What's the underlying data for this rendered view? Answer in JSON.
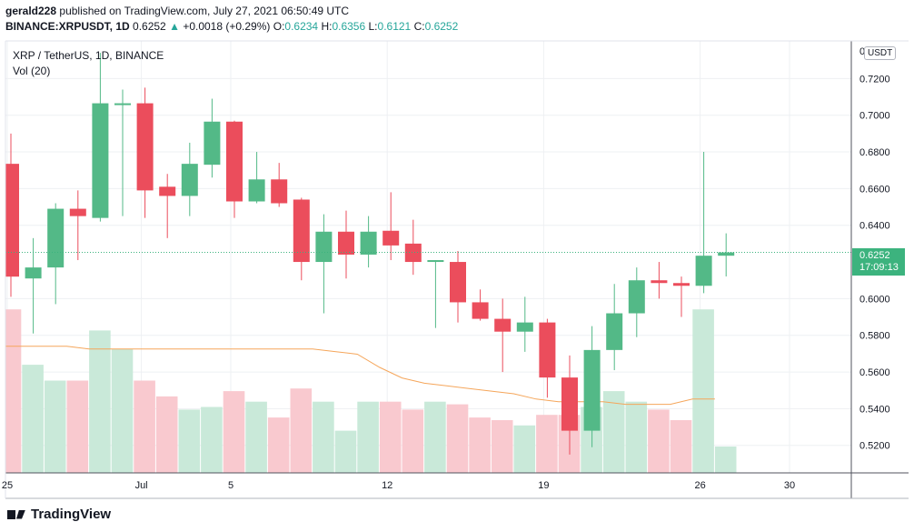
{
  "header": {
    "user": "gerald228",
    "published_text": "published on TradingView.com, July 27, 2021 06:50:49 UTC",
    "symbol_line": "BINANCE:XRPUSDT, 1D",
    "last": "0.6252",
    "change": "+0.0018 (+0.29%)",
    "open_label": "O:",
    "open": "0.6234",
    "high_label": "H:",
    "high": "0.6356",
    "low_label": "L:",
    "low": "0.6121",
    "close_label": "C:",
    "close": "0.6252"
  },
  "legend": {
    "symbol": "XRP / TetherUS, 1D, BINANCE",
    "volume": "Vol (20)"
  },
  "price_tag": {
    "price": "0.6252",
    "countdown": "17:09:13"
  },
  "currency_button": "USDT",
  "footer": {
    "brand": "TradingView"
  },
  "colors": {
    "up": "#26a69a",
    "up_candle": "#53b987",
    "down": "#eb4d5c",
    "vol_up": "#c9e9d9",
    "vol_down": "#f9c9cf",
    "ma": "#f5a65b",
    "price_line": "#3cb37e"
  },
  "chart_data": {
    "type": "candlestick",
    "y_axis": {
      "min": 0.505,
      "max": 0.7405,
      "ticks": [
        "0.7200",
        "0.7000",
        "0.6800",
        "0.6600",
        "0.6400",
        "0.6000",
        "0.5800",
        "0.5600",
        "0.5400",
        "0.5200"
      ],
      "top_partial_label": "0"
    },
    "x_axis": {
      "labels": [
        {
          "text": "25",
          "index": 0
        },
        {
          "text": "Jul",
          "index": 6
        },
        {
          "text": "5",
          "index": 10
        },
        {
          "text": "12",
          "index": 17
        },
        {
          "text": "19",
          "index": 24
        },
        {
          "text": "26",
          "index": 31
        },
        {
          "text": "30",
          "index": 35
        }
      ]
    },
    "candles": [
      {
        "o": 0.6735,
        "h": 0.69,
        "l": 0.601,
        "c": 0.612
      },
      {
        "o": 0.611,
        "h": 0.633,
        "l": 0.581,
        "c": 0.617
      },
      {
        "o": 0.617,
        "h": 0.652,
        "l": 0.597,
        "c": 0.649
      },
      {
        "o": 0.649,
        "h": 0.659,
        "l": 0.621,
        "c": 0.645
      },
      {
        "o": 0.644,
        "h": 0.734,
        "l": 0.642,
        "c": 0.7065
      },
      {
        "o": 0.7065,
        "h": 0.714,
        "l": 0.645,
        "c": 0.7065
      },
      {
        "o": 0.7065,
        "h": 0.715,
        "l": 0.644,
        "c": 0.659
      },
      {
        "o": 0.661,
        "h": 0.668,
        "l": 0.633,
        "c": 0.656
      },
      {
        "o": 0.656,
        "h": 0.685,
        "l": 0.645,
        "c": 0.6735
      },
      {
        "o": 0.673,
        "h": 0.709,
        "l": 0.666,
        "c": 0.6965
      },
      {
        "o": 0.6965,
        "h": 0.697,
        "l": 0.644,
        "c": 0.653
      },
      {
        "o": 0.653,
        "h": 0.68,
        "l": 0.652,
        "c": 0.665
      },
      {
        "o": 0.665,
        "h": 0.674,
        "l": 0.65,
        "c": 0.652
      },
      {
        "o": 0.654,
        "h": 0.655,
        "l": 0.61,
        "c": 0.62
      },
      {
        "o": 0.62,
        "h": 0.646,
        "l": 0.592,
        "c": 0.6365
      },
      {
        "o": 0.6365,
        "h": 0.648,
        "l": 0.611,
        "c": 0.624
      },
      {
        "o": 0.624,
        "h": 0.645,
        "l": 0.617,
        "c": 0.6365
      },
      {
        "o": 0.637,
        "h": 0.658,
        "l": 0.621,
        "c": 0.629
      },
      {
        "o": 0.63,
        "h": 0.643,
        "l": 0.613,
        "c": 0.62
      },
      {
        "o": 0.62,
        "h": 0.621,
        "l": 0.584,
        "c": 0.621
      },
      {
        "o": 0.62,
        "h": 0.626,
        "l": 0.587,
        "c": 0.598
      },
      {
        "o": 0.598,
        "h": 0.605,
        "l": 0.588,
        "c": 0.589
      },
      {
        "o": 0.589,
        "h": 0.6,
        "l": 0.56,
        "c": 0.582
      },
      {
        "o": 0.582,
        "h": 0.601,
        "l": 0.571,
        "c": 0.587
      },
      {
        "o": 0.587,
        "h": 0.589,
        "l": 0.546,
        "c": 0.557
      },
      {
        "o": 0.557,
        "h": 0.569,
        "l": 0.515,
        "c": 0.528
      },
      {
        "o": 0.528,
        "h": 0.585,
        "l": 0.519,
        "c": 0.572
      },
      {
        "o": 0.572,
        "h": 0.608,
        "l": 0.561,
        "c": 0.592
      },
      {
        "o": 0.592,
        "h": 0.617,
        "l": 0.579,
        "c": 0.61
      },
      {
        "o": 0.61,
        "h": 0.62,
        "l": 0.6,
        "c": 0.6085
      },
      {
        "o": 0.6085,
        "h": 0.612,
        "l": 0.59,
        "c": 0.607
      },
      {
        "o": 0.607,
        "h": 0.68,
        "l": 0.603,
        "c": 0.6234
      },
      {
        "o": 0.6234,
        "h": 0.6356,
        "l": 0.6121,
        "c": 0.6252
      }
    ],
    "volume": {
      "values": [
        0.62,
        0.41,
        0.35,
        0.35,
        0.54,
        0.47,
        0.35,
        0.29,
        0.24,
        0.25,
        0.31,
        0.27,
        0.21,
        0.32,
        0.27,
        0.16,
        0.27,
        0.27,
        0.24,
        0.27,
        0.26,
        0.21,
        0.2,
        0.18,
        0.22,
        0.22,
        0.25,
        0.31,
        0.27,
        0.24,
        0.2,
        0.62,
        0.1
      ],
      "directions": [
        "down",
        "up",
        "up",
        "down",
        "up",
        "up",
        "down",
        "down",
        "up",
        "up",
        "down",
        "up",
        "down",
        "down",
        "up",
        "up",
        "up",
        "down",
        "down",
        "up",
        "down",
        "down",
        "down",
        "up",
        "down",
        "down",
        "up",
        "up",
        "up",
        "down",
        "down",
        "up",
        "up"
      ],
      "ma": [
        0.48,
        0.48,
        0.48,
        0.48,
        0.47,
        0.47,
        0.47,
        0.47,
        0.47,
        0.47,
        0.47,
        0.47,
        0.47,
        0.47,
        0.47,
        0.46,
        0.45,
        0.4,
        0.36,
        0.34,
        0.33,
        0.32,
        0.31,
        0.3,
        0.28,
        0.27,
        0.27,
        0.27,
        0.26,
        0.26,
        0.26,
        0.28,
        0.28
      ]
    }
  }
}
